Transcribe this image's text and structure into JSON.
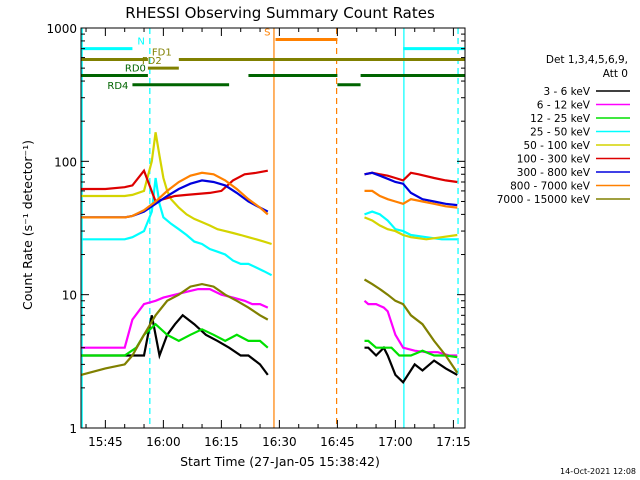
{
  "chart_data": {
    "type": "line",
    "title": "RHESSI Observing Summary Count Rates",
    "xlabel": "Start Time (27-Jan-05 15:38:42)",
    "ylabel": "Count Rate (s⁻¹ detector⁻¹)",
    "yscale": "log",
    "ylim": [
      1,
      1000
    ],
    "xlim_minutes_after_15_00": [
      38.7,
      138.0
    ],
    "x_unit": "minutes after 15:00 UT",
    "x_ticks": [
      {
        "m": 45,
        "label": "15:45"
      },
      {
        "m": 60,
        "label": "16:00"
      },
      {
        "m": 75,
        "label": "16:15"
      },
      {
        "m": 90,
        "label": "16:30"
      },
      {
        "m": 105,
        "label": "16:45"
      },
      {
        "m": 120,
        "label": "17:00"
      },
      {
        "m": 135,
        "label": "17:15"
      }
    ],
    "y_ticks": [
      {
        "v": 1,
        "label": "1"
      },
      {
        "v": 10,
        "label": "10"
      },
      {
        "v": 100,
        "label": "100"
      },
      {
        "v": 1000,
        "label": "1000"
      }
    ],
    "legend_header": [
      "Det 1,3,4,5,6,9,",
      "Att 0"
    ],
    "legend_position": "right",
    "timestamp": "14-Oct-2021 12:08",
    "series": [
      {
        "name": "3 - 6 keV",
        "color": "#000000",
        "x": [
          38.7,
          50,
          53,
          55,
          57,
          59,
          61,
          63,
          65,
          68,
          71,
          74,
          77,
          80,
          82,
          85,
          87,
          112,
          113,
          115,
          117,
          118,
          120,
          122,
          125,
          127,
          130,
          133,
          136
        ],
        "y": [
          3.5,
          3.5,
          3.5,
          3.5,
          7,
          3.5,
          5,
          6,
          7,
          6,
          5,
          4.5,
          4,
          3.5,
          3.5,
          3,
          2.5,
          4,
          4,
          3.5,
          4,
          3.5,
          2.5,
          2.2,
          3,
          2.7,
          3.2,
          2.8,
          2.5
        ]
      },
      {
        "name": "6 - 12 keV",
        "color": "#ff00ff",
        "x": [
          38.7,
          48,
          50,
          52,
          55,
          58,
          60,
          63,
          66,
          69,
          72,
          75,
          78,
          81,
          83,
          85,
          87,
          112,
          113,
          115,
          117,
          118,
          120,
          122,
          125,
          128,
          131,
          134,
          136
        ],
        "y": [
          4,
          4,
          4,
          6.5,
          8.5,
          9,
          9.5,
          10,
          10.5,
          11,
          11,
          10,
          9.5,
          9,
          8.5,
          8.5,
          8,
          9,
          8.5,
          8.5,
          8,
          7.5,
          5,
          4,
          3.8,
          3.7,
          3.7,
          3.5,
          3.5
        ]
      },
      {
        "name": "12 - 25 keV",
        "color": "#00e000",
        "x": [
          38.7,
          50,
          53,
          55,
          58,
          61,
          64,
          67,
          70,
          73,
          76,
          79,
          82,
          85,
          87,
          112,
          113,
          115,
          117,
          119,
          121,
          124,
          127,
          130,
          133,
          136
        ],
        "y": [
          3.5,
          3.5,
          4,
          5,
          6,
          5,
          4.5,
          5,
          5.5,
          5,
          4.5,
          5,
          4.5,
          4.5,
          4,
          4.5,
          4.5,
          4,
          4,
          4,
          3.5,
          3.5,
          3.8,
          3.5,
          3.5,
          3.4
        ]
      },
      {
        "name": "25 - 50 keV",
        "color": "#00ffff",
        "x": [
          38.7,
          45,
          50,
          52,
          55,
          57,
          58,
          59,
          60,
          62,
          64,
          66,
          68,
          70,
          72,
          74,
          76,
          78,
          80,
          82,
          84,
          86,
          88,
          112,
          114,
          116,
          118,
          120,
          122,
          124,
          128,
          132,
          136
        ],
        "y": [
          26,
          26,
          26,
          27,
          30,
          42,
          75,
          48,
          38,
          34,
          31,
          28,
          25,
          24,
          22,
          21,
          20,
          18,
          17,
          17,
          16,
          15,
          14,
          40,
          42,
          40,
          36,
          31,
          30,
          28,
          27,
          26,
          26
        ]
      },
      {
        "name": "50 - 100 keV",
        "color": "#d4d400",
        "x": [
          38.7,
          45,
          50,
          52,
          55,
          57,
          58,
          59,
          60,
          61,
          62,
          64,
          66,
          68,
          70,
          72,
          74,
          76,
          78,
          80,
          82,
          84,
          86,
          88,
          112,
          114,
          116,
          118,
          120,
          122,
          124,
          128,
          132,
          136
        ],
        "y": [
          55,
          55,
          55,
          56,
          60,
          100,
          165,
          110,
          75,
          60,
          52,
          45,
          40,
          37,
          35,
          33,
          31,
          30,
          29,
          28,
          27,
          26,
          25,
          24,
          38,
          36,
          33,
          31,
          30,
          28,
          27,
          26,
          27,
          28
        ]
      },
      {
        "name": "100 - 300 keV",
        "color": "#dd0000",
        "x": [
          38.7,
          45,
          50,
          52,
          55,
          58,
          60,
          63,
          66,
          69,
          72,
          75,
          78,
          81,
          84,
          87,
          112,
          114,
          116,
          118,
          120,
          122,
          124,
          126,
          130,
          133,
          136
        ],
        "y": [
          62,
          62,
          64,
          66,
          85,
          50,
          52,
          55,
          56,
          57,
          58,
          60,
          72,
          80,
          82,
          85,
          80,
          82,
          80,
          78,
          75,
          72,
          82,
          80,
          75,
          72,
          70
        ]
      },
      {
        "name": "300 - 800 keV",
        "color": "#0000dd",
        "x": [
          38.7,
          45,
          50,
          52,
          55,
          58,
          61,
          64,
          67,
          70,
          73,
          76,
          79,
          82,
          85,
          87,
          112,
          114,
          116,
          118,
          120,
          122,
          124,
          127,
          130,
          133,
          136
        ],
        "y": [
          38,
          38,
          38,
          39,
          42,
          48,
          55,
          62,
          68,
          72,
          70,
          66,
          58,
          50,
          45,
          42,
          80,
          82,
          78,
          74,
          70,
          68,
          58,
          52,
          50,
          48,
          47
        ]
      },
      {
        "name": "800 - 7000 keV",
        "color": "#ff8000",
        "x": [
          38.7,
          45,
          50,
          52,
          55,
          58,
          61,
          64,
          67,
          70,
          73,
          76,
          79,
          82,
          85,
          87,
          112,
          114,
          116,
          118,
          120,
          122,
          124,
          127,
          130,
          133,
          136
        ],
        "y": [
          38,
          38,
          38,
          39,
          43,
          50,
          60,
          70,
          78,
          82,
          80,
          72,
          62,
          52,
          45,
          40,
          60,
          60,
          55,
          52,
          50,
          48,
          52,
          50,
          48,
          46,
          45
        ]
      },
      {
        "name": "7000 - 15000 keV",
        "color": "#808000",
        "x": [
          38.7,
          45,
          50,
          52,
          55,
          58,
          61,
          64,
          67,
          70,
          73,
          76,
          79,
          82,
          85,
          87,
          112,
          114,
          116,
          118,
          120,
          122,
          124,
          127,
          130,
          133,
          136
        ],
        "y": [
          2.5,
          2.8,
          3,
          3.5,
          5,
          7,
          9,
          10,
          11.5,
          12,
          11.5,
          10,
          9,
          8,
          7,
          6.5,
          13,
          12,
          11,
          10,
          9,
          8.5,
          7,
          6,
          4.5,
          3.5,
          2.6
        ]
      }
    ],
    "state_bars": [
      {
        "label": "N",
        "color": "#00ffff",
        "y": 700,
        "segments": [
          [
            38.7,
            52
          ],
          [
            122,
            138
          ]
        ]
      },
      {
        "label": "S",
        "color": "#ff8000",
        "y": 820,
        "segments": [
          [
            89,
            105
          ]
        ]
      },
      {
        "label": "FD1",
        "color": "#808000",
        "y": 580,
        "segments": [
          [
            38.7,
            56
          ],
          [
            64,
            138
          ]
        ]
      },
      {
        "label": "FD2",
        "color": "#808000",
        "y": 500,
        "segments": [
          [
            56,
            64
          ]
        ]
      },
      {
        "label": "RD0",
        "color": "#006400",
        "y": 440,
        "segments": [
          [
            38.7,
            56
          ],
          [
            82,
            105
          ],
          [
            111,
            138
          ]
        ]
      },
      {
        "label": "RD4",
        "color": "#006400",
        "y": 375,
        "segments": [
          [
            52,
            77
          ],
          [
            105,
            111
          ]
        ]
      }
    ],
    "vertical_markers": [
      {
        "m": 39.0,
        "color": "#00ffff",
        "style": "solid"
      },
      {
        "m": 56.5,
        "color": "#00ffff",
        "style": "dashed"
      },
      {
        "m": 88.6,
        "color": "#ff8000",
        "style": "solid"
      },
      {
        "m": 104.8,
        "color": "#ff8000",
        "style": "dashed"
      },
      {
        "m": 122.2,
        "color": "#00ffff",
        "style": "solid"
      },
      {
        "m": 136.2,
        "color": "#00ffff",
        "style": "dashed"
      }
    ]
  }
}
